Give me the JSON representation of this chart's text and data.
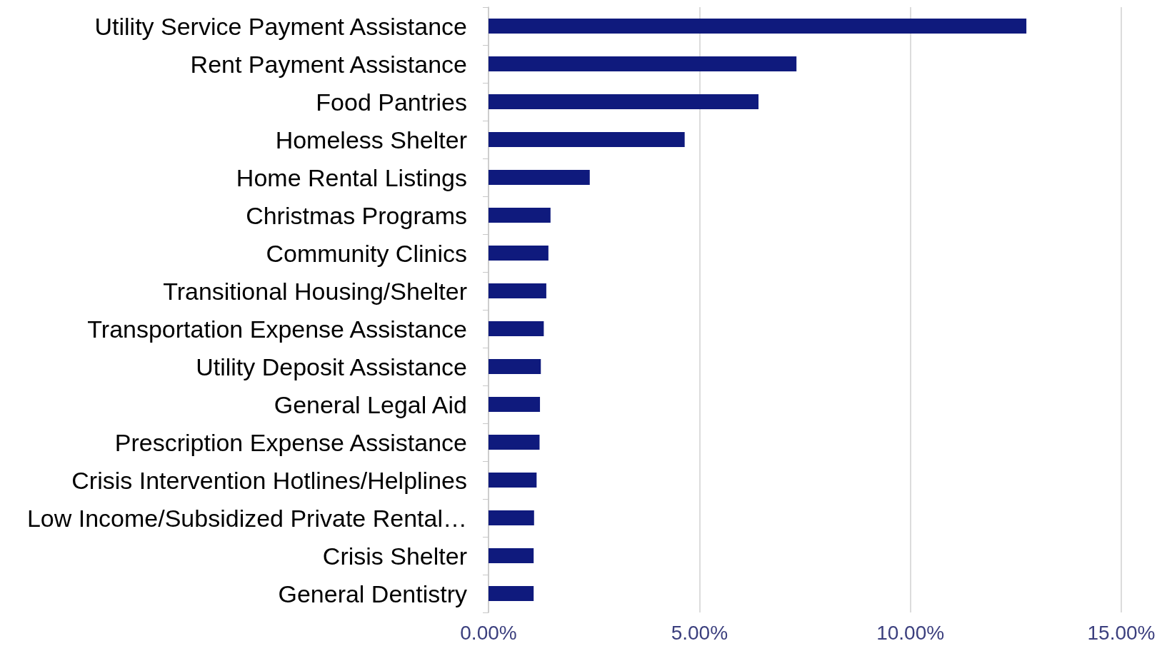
{
  "chart_data": {
    "type": "bar",
    "orientation": "horizontal",
    "categories": [
      "Utility Service Payment Assistance",
      "Rent Payment Assistance",
      "Food Pantries",
      "Homeless Shelter",
      "Home Rental Listings",
      "Christmas Programs",
      "Community Clinics",
      "Transitional Housing/Shelter",
      "Transportation Expense Assistance",
      "Utility Deposit Assistance",
      "General Legal Aid",
      "Prescription Expense Assistance",
      "Crisis Intervention Hotlines/Helplines",
      "Low Income/Subsidized Private Rental…",
      "Crisis Shelter",
      "General Dentistry"
    ],
    "values": [
      12.75,
      7.3,
      6.4,
      4.65,
      2.4,
      1.47,
      1.42,
      1.37,
      1.31,
      1.24,
      1.22,
      1.21,
      1.14,
      1.08,
      1.07,
      1.07
    ],
    "color": "#0f1a7d",
    "xlim": [
      0,
      15
    ],
    "xticks": [
      {
        "value": 0,
        "label": "0.00%"
      },
      {
        "value": 5,
        "label": "5.00%"
      },
      {
        "value": 10,
        "label": "10.00%"
      },
      {
        "value": 15,
        "label": "15.00%"
      }
    ],
    "grid": "x"
  }
}
